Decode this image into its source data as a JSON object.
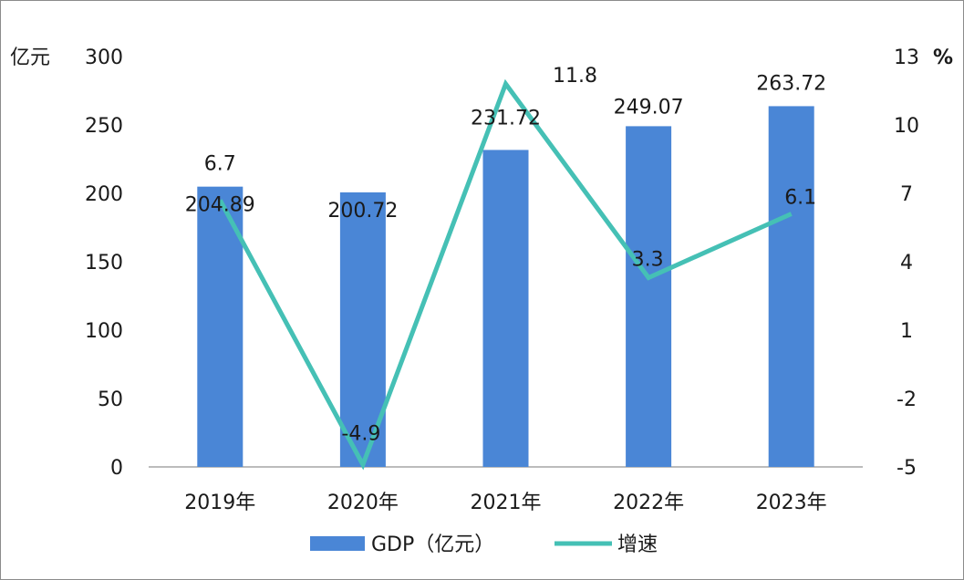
{
  "chart_data": {
    "type": "bar",
    "categories": [
      "2019年",
      "2020年",
      "2021年",
      "2022年",
      "2023年"
    ],
    "series": [
      {
        "name": "GDP（亿元）",
        "type": "bar",
        "axis": "left",
        "values": [
          204.89,
          200.72,
          231.72,
          249.07,
          263.72
        ],
        "labels": [
          "204.89",
          "200.72",
          "231.72",
          "249.07",
          "263.72"
        ],
        "color": "#4a86d6"
      },
      {
        "name": "增速",
        "type": "line",
        "axis": "right",
        "values": [
          6.7,
          -4.9,
          11.8,
          3.3,
          6.1
        ],
        "labels": [
          "6.7",
          "-4.9",
          "11.8",
          "3.3",
          "6.1"
        ],
        "color": "#45c0b5"
      }
    ],
    "y_left": {
      "unit": "亿元",
      "ylim": [
        0,
        300
      ],
      "ticks": [
        0,
        50,
        100,
        150,
        200,
        250,
        300
      ],
      "tick_labels": [
        "0",
        "50",
        "100",
        "150",
        "200",
        "250",
        "300"
      ]
    },
    "y_right": {
      "unit": "%",
      "ylim": [
        -5,
        13
      ],
      "ticks": [
        -5,
        -2,
        1,
        4,
        7,
        10,
        13
      ],
      "tick_labels": [
        "-5",
        "-2",
        "1",
        "4",
        "7",
        "10",
        "13"
      ]
    },
    "grid": false,
    "legend": "bottom-center"
  }
}
